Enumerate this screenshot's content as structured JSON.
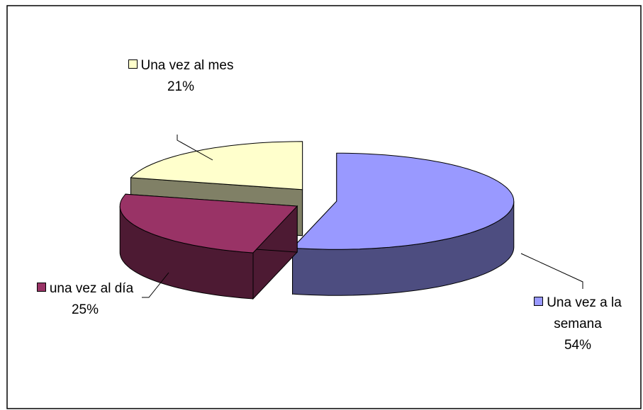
{
  "chart_data": {
    "type": "pie3d",
    "categories": [
      "Una vez a la semana",
      "una vez al día",
      "Una vez al mes"
    ],
    "values": [
      54,
      25,
      21
    ],
    "value_labels": [
      "54%",
      "25%",
      "21%"
    ],
    "colors": [
      "#9999ff",
      "#993366",
      "#ffffcc"
    ],
    "side_colors": [
      "#4d4d80",
      "#4d1a33",
      "#808066"
    ]
  }
}
